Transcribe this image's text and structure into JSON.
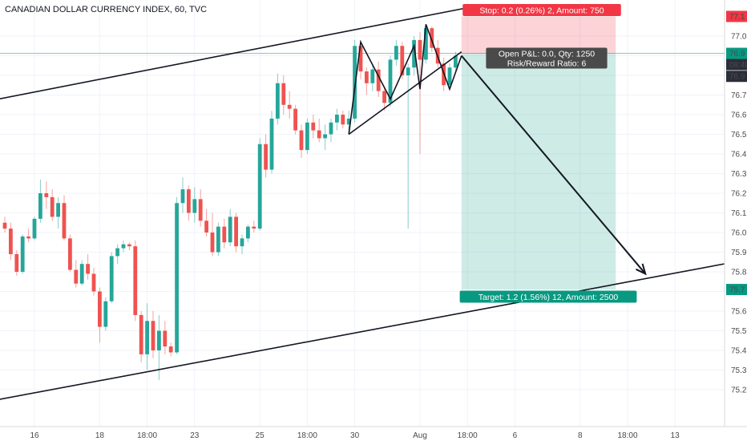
{
  "chart_data": {
    "type": "candlestick",
    "title": "CANADIAN DOLLAR CURRENCY INDEX, 60, TVC",
    "y_ticks": [
      "77.0",
      "76.9",
      "76.8",
      "76.7",
      "76.6",
      "76.5",
      "76.4",
      "76.3",
      "76.2",
      "76.1",
      "76.0",
      "75.9",
      "75.8",
      "75.7",
      "75.6",
      "75.5",
      "75.4",
      "75.3",
      "75.2"
    ],
    "ylim": [
      75.15,
      77.17
    ],
    "x_ticks": [
      {
        "label": "16",
        "idx": 5
      },
      {
        "label": "18",
        "idx": 16
      },
      {
        "label": "18:00",
        "idx": 24
      },
      {
        "label": "23",
        "idx": 32
      },
      {
        "label": "25",
        "idx": 43
      },
      {
        "label": "18:00",
        "idx": 51
      },
      {
        "label": "30",
        "idx": 59
      },
      {
        "label": "Aug",
        "idx": 70
      },
      {
        "label": "18:00",
        "idx": 78
      },
      {
        "label": "6",
        "idx": 86
      },
      {
        "label": "8",
        "idx": 97
      },
      {
        "label": "18:00",
        "idx": 105
      },
      {
        "label": "13",
        "idx": 113
      }
    ],
    "price_labels": [
      {
        "value": "77.1",
        "price": 77.1,
        "color": "#f23645"
      },
      {
        "value": "76.9",
        "price": 76.912,
        "color": "#089981"
      },
      {
        "value": "08:40",
        "price": 76.855,
        "color": "#2a2e39"
      },
      {
        "value": "76.9",
        "price": 76.795,
        "color": "#2a2e39"
      },
      {
        "value": "75.7",
        "price": 75.71,
        "color": "#089981"
      }
    ],
    "position": {
      "entry": 76.912,
      "stop": 77.1,
      "target": 75.71,
      "start_idx": 77,
      "end_idx": 103,
      "stop_text": "Stop: 0.2 (0.26%) 2, Amount: 750",
      "target_text": "Target: 1.2 (1.56%) 12, Amount: 2500",
      "info_line1": "Open P&L: 0.0, Qty: 1250",
      "info_line2": "Risk/Reward Ratio: 6"
    },
    "trendlines": [
      {
        "from": [
          -1,
          76.68
        ],
        "to": [
          79,
          77.15
        ]
      },
      {
        "from": [
          -1,
          75.15
        ],
        "to": [
          123,
          75.85
        ]
      },
      {
        "from": [
          58,
          76.5
        ],
        "to": [
          77,
          76.92
        ]
      }
    ],
    "zigzag": [
      [
        58,
        76.5
      ],
      [
        60,
        76.97
      ],
      [
        65,
        76.68
      ],
      [
        69,
        76.95
      ],
      [
        70,
        76.73
      ],
      [
        71,
        77.06
      ],
      [
        75,
        76.73
      ],
      [
        77,
        76.9
      ]
    ],
    "arrow": {
      "from": [
        77,
        76.9
      ],
      "to": [
        108,
        75.79
      ]
    },
    "candles": [
      [
        76.05,
        76.08,
        76.0,
        76.02
      ],
      [
        76.02,
        76.05,
        75.86,
        75.89
      ],
      [
        75.89,
        75.91,
        75.78,
        75.8
      ],
      [
        75.8,
        75.99,
        75.79,
        75.98
      ],
      [
        75.98,
        76.02,
        75.95,
        75.97
      ],
      [
        75.97,
        76.08,
        75.96,
        76.07
      ],
      [
        76.07,
        76.27,
        76.05,
        76.2
      ],
      [
        76.2,
        76.26,
        76.12,
        76.18
      ],
      [
        76.18,
        76.22,
        76.06,
        76.08
      ],
      [
        76.08,
        76.18,
        76.02,
        76.15
      ],
      [
        76.15,
        76.19,
        75.96,
        75.97
      ],
      [
        75.97,
        75.99,
        75.8,
        75.81
      ],
      [
        75.81,
        75.86,
        75.72,
        75.74
      ],
      [
        75.74,
        75.86,
        75.73,
        75.84
      ],
      [
        75.84,
        75.89,
        75.76,
        75.79
      ],
      [
        75.79,
        75.82,
        75.68,
        75.7
      ],
      [
        75.7,
        75.72,
        75.44,
        75.52
      ],
      [
        75.52,
        75.67,
        75.5,
        75.65
      ],
      [
        75.65,
        75.9,
        75.64,
        75.88
      ],
      [
        75.88,
        75.94,
        75.84,
        75.92
      ],
      [
        75.92,
        75.96,
        75.9,
        75.94
      ],
      [
        75.94,
        75.95,
        75.91,
        75.93
      ],
      [
        75.93,
        75.96,
        75.55,
        75.58
      ],
      [
        75.58,
        75.6,
        75.34,
        75.38
      ],
      [
        75.38,
        75.64,
        75.3,
        75.55
      ],
      [
        75.55,
        75.6,
        75.36,
        75.4
      ],
      [
        75.4,
        75.58,
        75.25,
        75.5
      ],
      [
        75.5,
        75.55,
        75.38,
        75.42
      ],
      [
        75.42,
        75.44,
        75.37,
        75.39
      ],
      [
        75.39,
        76.18,
        75.38,
        76.15
      ],
      [
        76.15,
        76.28,
        76.1,
        76.22
      ],
      [
        76.22,
        76.24,
        76.06,
        76.1
      ],
      [
        76.1,
        76.23,
        76.05,
        76.17
      ],
      [
        76.17,
        76.22,
        76.03,
        76.06
      ],
      [
        76.06,
        76.12,
        75.98,
        76.0
      ],
      [
        76.0,
        76.1,
        75.88,
        75.9
      ],
      [
        75.9,
        76.05,
        75.88,
        76.03
      ],
      [
        76.03,
        76.07,
        75.92,
        75.95
      ],
      [
        75.95,
        76.12,
        75.93,
        76.08
      ],
      [
        76.08,
        76.1,
        75.9,
        75.93
      ],
      [
        75.93,
        75.99,
        75.89,
        75.97
      ],
      [
        75.97,
        76.04,
        75.95,
        76.03
      ],
      [
        76.03,
        76.06,
        76.0,
        76.02
      ],
      [
        76.02,
        76.48,
        76.01,
        76.45
      ],
      [
        76.45,
        76.5,
        76.28,
        76.32
      ],
      [
        76.32,
        76.62,
        76.3,
        76.58
      ],
      [
        76.58,
        76.81,
        76.55,
        76.76
      ],
      [
        76.76,
        76.8,
        76.6,
        76.65
      ],
      [
        76.65,
        76.72,
        76.58,
        76.63
      ],
      [
        76.63,
        76.65,
        76.5,
        76.52
      ],
      [
        76.52,
        76.55,
        76.38,
        76.42
      ],
      [
        76.42,
        76.58,
        76.4,
        76.56
      ],
      [
        76.56,
        76.6,
        76.48,
        76.52
      ],
      [
        76.52,
        76.58,
        76.46,
        76.48
      ],
      [
        76.48,
        76.55,
        76.42,
        76.5
      ],
      [
        76.5,
        76.58,
        76.46,
        76.56
      ],
      [
        76.56,
        76.63,
        76.52,
        76.6
      ],
      [
        76.6,
        76.62,
        76.53,
        76.55
      ],
      [
        76.55,
        76.62,
        76.5,
        76.58
      ],
      [
        76.58,
        76.98,
        76.56,
        76.95
      ],
      [
        76.95,
        76.98,
        76.78,
        76.82
      ],
      [
        76.82,
        76.84,
        76.7,
        76.76
      ],
      [
        76.76,
        76.86,
        76.72,
        76.83
      ],
      [
        76.83,
        76.87,
        76.69,
        76.72
      ],
      [
        76.72,
        76.74,
        76.62,
        76.66
      ],
      [
        76.66,
        76.9,
        76.64,
        76.88
      ],
      [
        76.88,
        76.98,
        76.85,
        76.95
      ],
      [
        76.95,
        76.97,
        76.78,
        76.8
      ],
      [
        76.8,
        76.86,
        76.02,
        76.84
      ],
      [
        76.84,
        77.0,
        76.8,
        76.98
      ],
      [
        76.98,
        77.02,
        76.4,
        76.88
      ],
      [
        76.88,
        77.06,
        76.86,
        77.04
      ],
      [
        77.04,
        77.05,
        76.92,
        76.94
      ],
      [
        76.94,
        76.98,
        76.84,
        76.86
      ],
      [
        76.86,
        76.89,
        76.72,
        76.75
      ],
      [
        76.75,
        76.86,
        76.73,
        76.84
      ],
      [
        76.84,
        76.92,
        76.82,
        76.9
      ]
    ]
  }
}
